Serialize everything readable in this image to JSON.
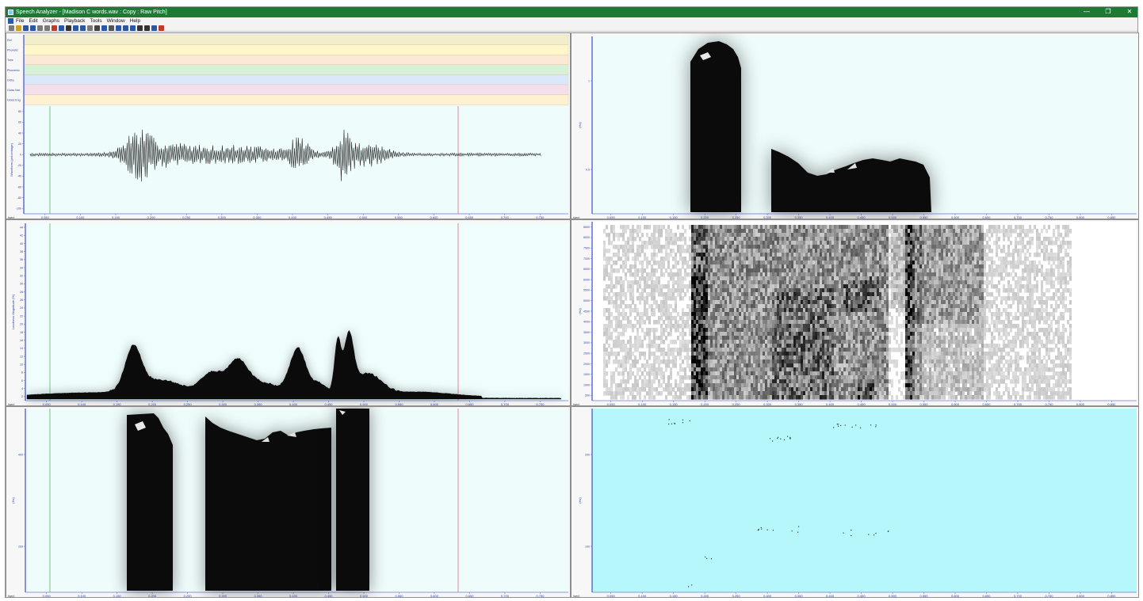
{
  "window": {
    "title": "Speech Analyzer - [Madison C words.wav : Copy : Raw Pitch]",
    "minimize_glyph": "—",
    "restore_glyph": "❐",
    "close_glyph": "✕",
    "title_color": "#1d7a35"
  },
  "menu": {
    "items": [
      "File",
      "Edit",
      "Graphs",
      "Playback",
      "Tools",
      "Window",
      "Help"
    ]
  },
  "toolbar": {
    "buttons": [
      "new-icon",
      "open-icon",
      "save-icon",
      "save-as-icon",
      "undo-icon",
      "redo-icon",
      "record-icon",
      "play-icon",
      "stop-icon",
      "zoom-in-icon",
      "zoom-out-icon",
      "bookmark-icon",
      "grid-icon",
      "waveform-icon",
      "spectrogram-icon",
      "pitch-icon",
      "loop-icon",
      "play-selection-icon",
      "prev-icon",
      "next-icon",
      "help-icon",
      "exit-icon"
    ]
  },
  "annotation_layers": {
    "labels": [
      "Ref",
      "Phonetic",
      "Tone",
      "Phonemic",
      "Ortho",
      "Gloss Nat.",
      "Gloss Eng"
    ],
    "colors": [
      "#f2eecb",
      "#fff7c9",
      "#fbe8d5",
      "#d6f1d6",
      "#dbe8f9",
      "#f6dfec",
      "#fdf1d1"
    ]
  },
  "panes": {
    "waveform": {
      "y_label": "Waveform (percentage)",
      "y_ticks": [
        "80",
        "60",
        "40",
        "20",
        "0",
        "-20",
        "-40",
        "-60",
        "-80",
        "-100"
      ],
      "time_ticks": [
        "0.050",
        "0.100",
        "0.150",
        "0.200",
        "0.250",
        "0.300",
        "0.350",
        "0.400",
        "0.450",
        "0.500",
        "0.550",
        "0.600",
        "0.650",
        "0.700",
        "0.750"
      ],
      "corner_label": "(sec)",
      "background": "#effcfc"
    },
    "loudness": {
      "y_label": "Loudness Magnitude (%)",
      "y_ticks": [
        "44",
        "42",
        "40",
        "38",
        "36",
        "34",
        "32",
        "30",
        "28",
        "26",
        "24",
        "22",
        "20",
        "18",
        "16",
        "14",
        "12",
        "10",
        "8",
        "6",
        "4",
        "2"
      ],
      "time_ticks": [
        "0.050",
        "0.100",
        "0.150",
        "0.200",
        "0.250",
        "0.300",
        "0.350",
        "0.400",
        "0.450",
        "0.500",
        "0.550",
        "0.600",
        "0.650",
        "0.700",
        "0.750"
      ],
      "corner_label": "(sec)",
      "background": "#f0fdfd"
    },
    "pitch_left": {
      "y_label": "(Hz)",
      "y_ticks": [
        "400",
        "200"
      ],
      "time_ticks": [
        "0.050",
        "0.100",
        "0.150",
        "0.200",
        "0.250",
        "0.300",
        "0.350",
        "0.400",
        "0.450",
        "0.500",
        "0.550",
        "0.600",
        "0.650",
        "0.700",
        "0.750"
      ],
      "corner_label": "(sec)",
      "background": "#effcfc"
    },
    "pitch_right": {
      "y_label": "(Hz)",
      "y_ticks": [
        "1",
        "0.5"
      ],
      "time_ticks": [
        "0.050",
        "0.100",
        "0.150",
        "0.200",
        "0.250",
        "0.300",
        "0.350",
        "0.400",
        "0.450",
        "0.500",
        "0.550",
        "0.600",
        "0.650",
        "0.700",
        "0.750",
        "0.800",
        "0.850"
      ],
      "corner_label": "(sec)",
      "background": "#effcfc"
    },
    "spectrogram": {
      "y_label": "(Hz)",
      "y_ticks": [
        "8500",
        "8000",
        "7500",
        "7000",
        "6500",
        "6000",
        "5500",
        "5000",
        "4500",
        "4000",
        "3500",
        "3000",
        "2500",
        "2000",
        "1500",
        "1000",
        "500"
      ],
      "time_ticks": [
        "0.050",
        "0.100",
        "0.150",
        "0.200",
        "0.250",
        "0.300",
        "0.350",
        "0.400",
        "0.450",
        "0.500",
        "0.550",
        "0.600",
        "0.650",
        "0.700",
        "0.750",
        "0.800",
        "0.850"
      ],
      "corner_label": "(sec)",
      "background": "#ffffff"
    },
    "raw_pitch": {
      "y_label": "(Hz)",
      "y_ticks": [
        "200",
        "100"
      ],
      "time_ticks": [
        "0.050",
        "0.100",
        "0.150",
        "0.200",
        "0.250",
        "0.300",
        "0.350",
        "0.400",
        "0.450",
        "0.500",
        "0.550",
        "0.600",
        "0.650",
        "0.700",
        "0.750",
        "0.800",
        "0.850"
      ],
      "corner_label": "(sec)",
      "background": "#b6f7fb"
    }
  }
}
